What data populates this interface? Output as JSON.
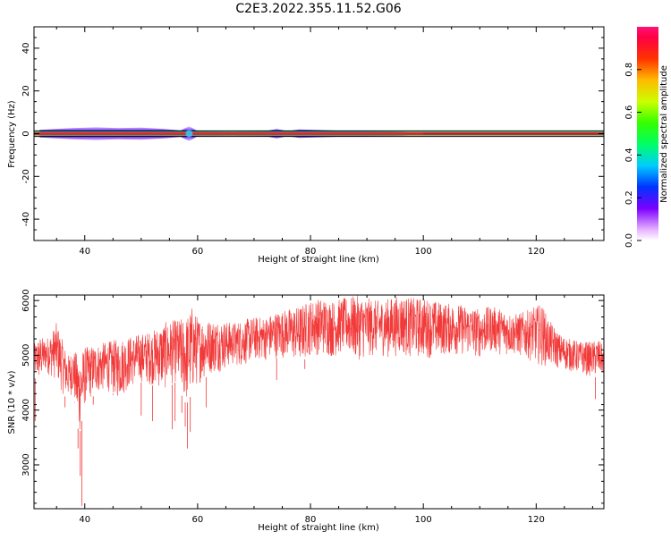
{
  "title": "C2E3.2022.355.11.52.G06",
  "colors": {
    "signal_line": "#e8232d",
    "zero_band_center": "#c51b32",
    "spectrum_halo": "#7c3aed",
    "snr_line": "#f23a3a"
  },
  "chart_data": [
    {
      "type": "heatmap",
      "xlabel": "Height of straight line (km)",
      "ylabel": "Frequency (Hz)",
      "xlim": [
        31,
        132
      ],
      "ylim": [
        -50,
        50
      ],
      "xticks": [
        "40",
        "60",
        "80",
        "100",
        "120"
      ],
      "yticks": [
        "-40",
        "-20",
        "0",
        "20",
        "40"
      ],
      "xtick_values": [
        40,
        60,
        80,
        100,
        120
      ],
      "ytick_values": [
        -40,
        -20,
        0,
        20,
        40
      ],
      "band": {
        "frequency_center": 0,
        "halo_points": [
          {
            "x": 32,
            "halfwidth": 1.8
          },
          {
            "x": 35,
            "halfwidth": 2.2
          },
          {
            "x": 38,
            "halfwidth": 2.6
          },
          {
            "x": 42,
            "halfwidth": 3.0
          },
          {
            "x": 46,
            "halfwidth": 2.6
          },
          {
            "x": 50,
            "halfwidth": 2.8
          },
          {
            "x": 54,
            "halfwidth": 2.2
          },
          {
            "x": 57,
            "halfwidth": 1.5
          },
          {
            "x": 58.5,
            "halfwidth": 3.5
          },
          {
            "x": 60,
            "halfwidth": 1.2
          },
          {
            "x": 66,
            "halfwidth": 1.0
          },
          {
            "x": 72,
            "halfwidth": 1.2
          },
          {
            "x": 74,
            "halfwidth": 2.2
          },
          {
            "x": 76,
            "halfwidth": 1.2
          },
          {
            "x": 78,
            "halfwidth": 2.0
          },
          {
            "x": 84,
            "halfwidth": 1.5
          },
          {
            "x": 90,
            "halfwidth": 1.2
          },
          {
            "x": 96,
            "halfwidth": 1.0
          },
          {
            "x": 100,
            "halfwidth": 0.5
          },
          {
            "x": 132,
            "halfwidth": 0.4
          }
        ]
      },
      "colorbar": {
        "label": "Normalized spectral amplitude",
        "ticks": [
          "0.0",
          "0.2",
          "0.4",
          "0.6",
          "0.8"
        ],
        "tick_values": [
          0.0,
          0.2,
          0.4,
          0.6,
          0.8
        ],
        "range": [
          0,
          1
        ]
      }
    },
    {
      "type": "line",
      "xlabel": "Height of straight line (km)",
      "ylabel": "SNR (10 * v/v)",
      "xlim": [
        31,
        132
      ],
      "ylim": [
        2200,
        6100
      ],
      "xticks": [
        "40",
        "60",
        "80",
        "100",
        "120"
      ],
      "yticks": [
        "3000",
        "4000",
        "5000",
        "6000"
      ],
      "xtick_values": [
        40,
        60,
        80,
        100,
        120
      ],
      "ytick_values": [
        3000,
        4000,
        5000,
        6000
      ],
      "series": [
        {
          "x": [
            31,
            32,
            33,
            34,
            35,
            36,
            37,
            38,
            39,
            40,
            42,
            44,
            46,
            48,
            50,
            52,
            54,
            56,
            58,
            59,
            60,
            62,
            64,
            66,
            68,
            70,
            72,
            74,
            76,
            78,
            80,
            82,
            84,
            86,
            88,
            90,
            92,
            94,
            96,
            98,
            100,
            102,
            104,
            106,
            108,
            110,
            112,
            114,
            116,
            118,
            120,
            121,
            122,
            124,
            126,
            128,
            130,
            131,
            132
          ],
          "upper": [
            5200,
            5350,
            5300,
            5400,
            5600,
            5300,
            5000,
            5100,
            5000,
            5150,
            5200,
            5250,
            5300,
            5350,
            5400,
            5450,
            5600,
            5650,
            5700,
            5900,
            5700,
            5650,
            5650,
            5600,
            5650,
            5700,
            5700,
            5800,
            5850,
            5900,
            6000,
            6050,
            6000,
            6050,
            6100,
            6050,
            6000,
            6050,
            6100,
            6050,
            6050,
            6000,
            5950,
            5950,
            5900,
            5850,
            5900,
            5850,
            5750,
            5800,
            5900,
            5950,
            5700,
            5400,
            5300,
            5250,
            5250,
            5300,
            5150
          ],
          "lower": [
            4600,
            4500,
            4700,
            4600,
            4550,
            4300,
            4200,
            4300,
            3500,
            4100,
            4300,
            4350,
            4200,
            4400,
            4500,
            4450,
            4350,
            4500,
            4100,
            4300,
            4450,
            4650,
            4700,
            4800,
            4800,
            4900,
            4900,
            4950,
            4950,
            4850,
            5000,
            5000,
            4950,
            5050,
            4900,
            4950,
            5000,
            4950,
            5000,
            4950,
            4950,
            4950,
            5000,
            5000,
            5000,
            4950,
            5050,
            5000,
            5000,
            4950,
            4850,
            4800,
            4800,
            4750,
            4700,
            4650,
            4600,
            4600,
            4650
          ],
          "dips": [
            {
              "x": 31.2,
              "y": 3800
            },
            {
              "x": 36.5,
              "y": 4050
            },
            {
              "x": 38.2,
              "y": 4150
            },
            {
              "x": 38.8,
              "y": 3300
            },
            {
              "x": 39.2,
              "y": 2800
            },
            {
              "x": 39.5,
              "y": 2250
            },
            {
              "x": 41.5,
              "y": 4100
            },
            {
              "x": 45,
              "y": 4300
            },
            {
              "x": 50,
              "y": 3900
            },
            {
              "x": 52,
              "y": 3800
            },
            {
              "x": 55.5,
              "y": 3650
            },
            {
              "x": 56,
              "y": 3800
            },
            {
              "x": 57.2,
              "y": 3950
            },
            {
              "x": 57.8,
              "y": 3700
            },
            {
              "x": 58.2,
              "y": 3300
            },
            {
              "x": 58.7,
              "y": 3600
            },
            {
              "x": 61.5,
              "y": 4050
            },
            {
              "x": 74,
              "y": 4550
            },
            {
              "x": 79,
              "y": 4750
            },
            {
              "x": 130.5,
              "y": 4200
            }
          ]
        }
      ]
    }
  ]
}
